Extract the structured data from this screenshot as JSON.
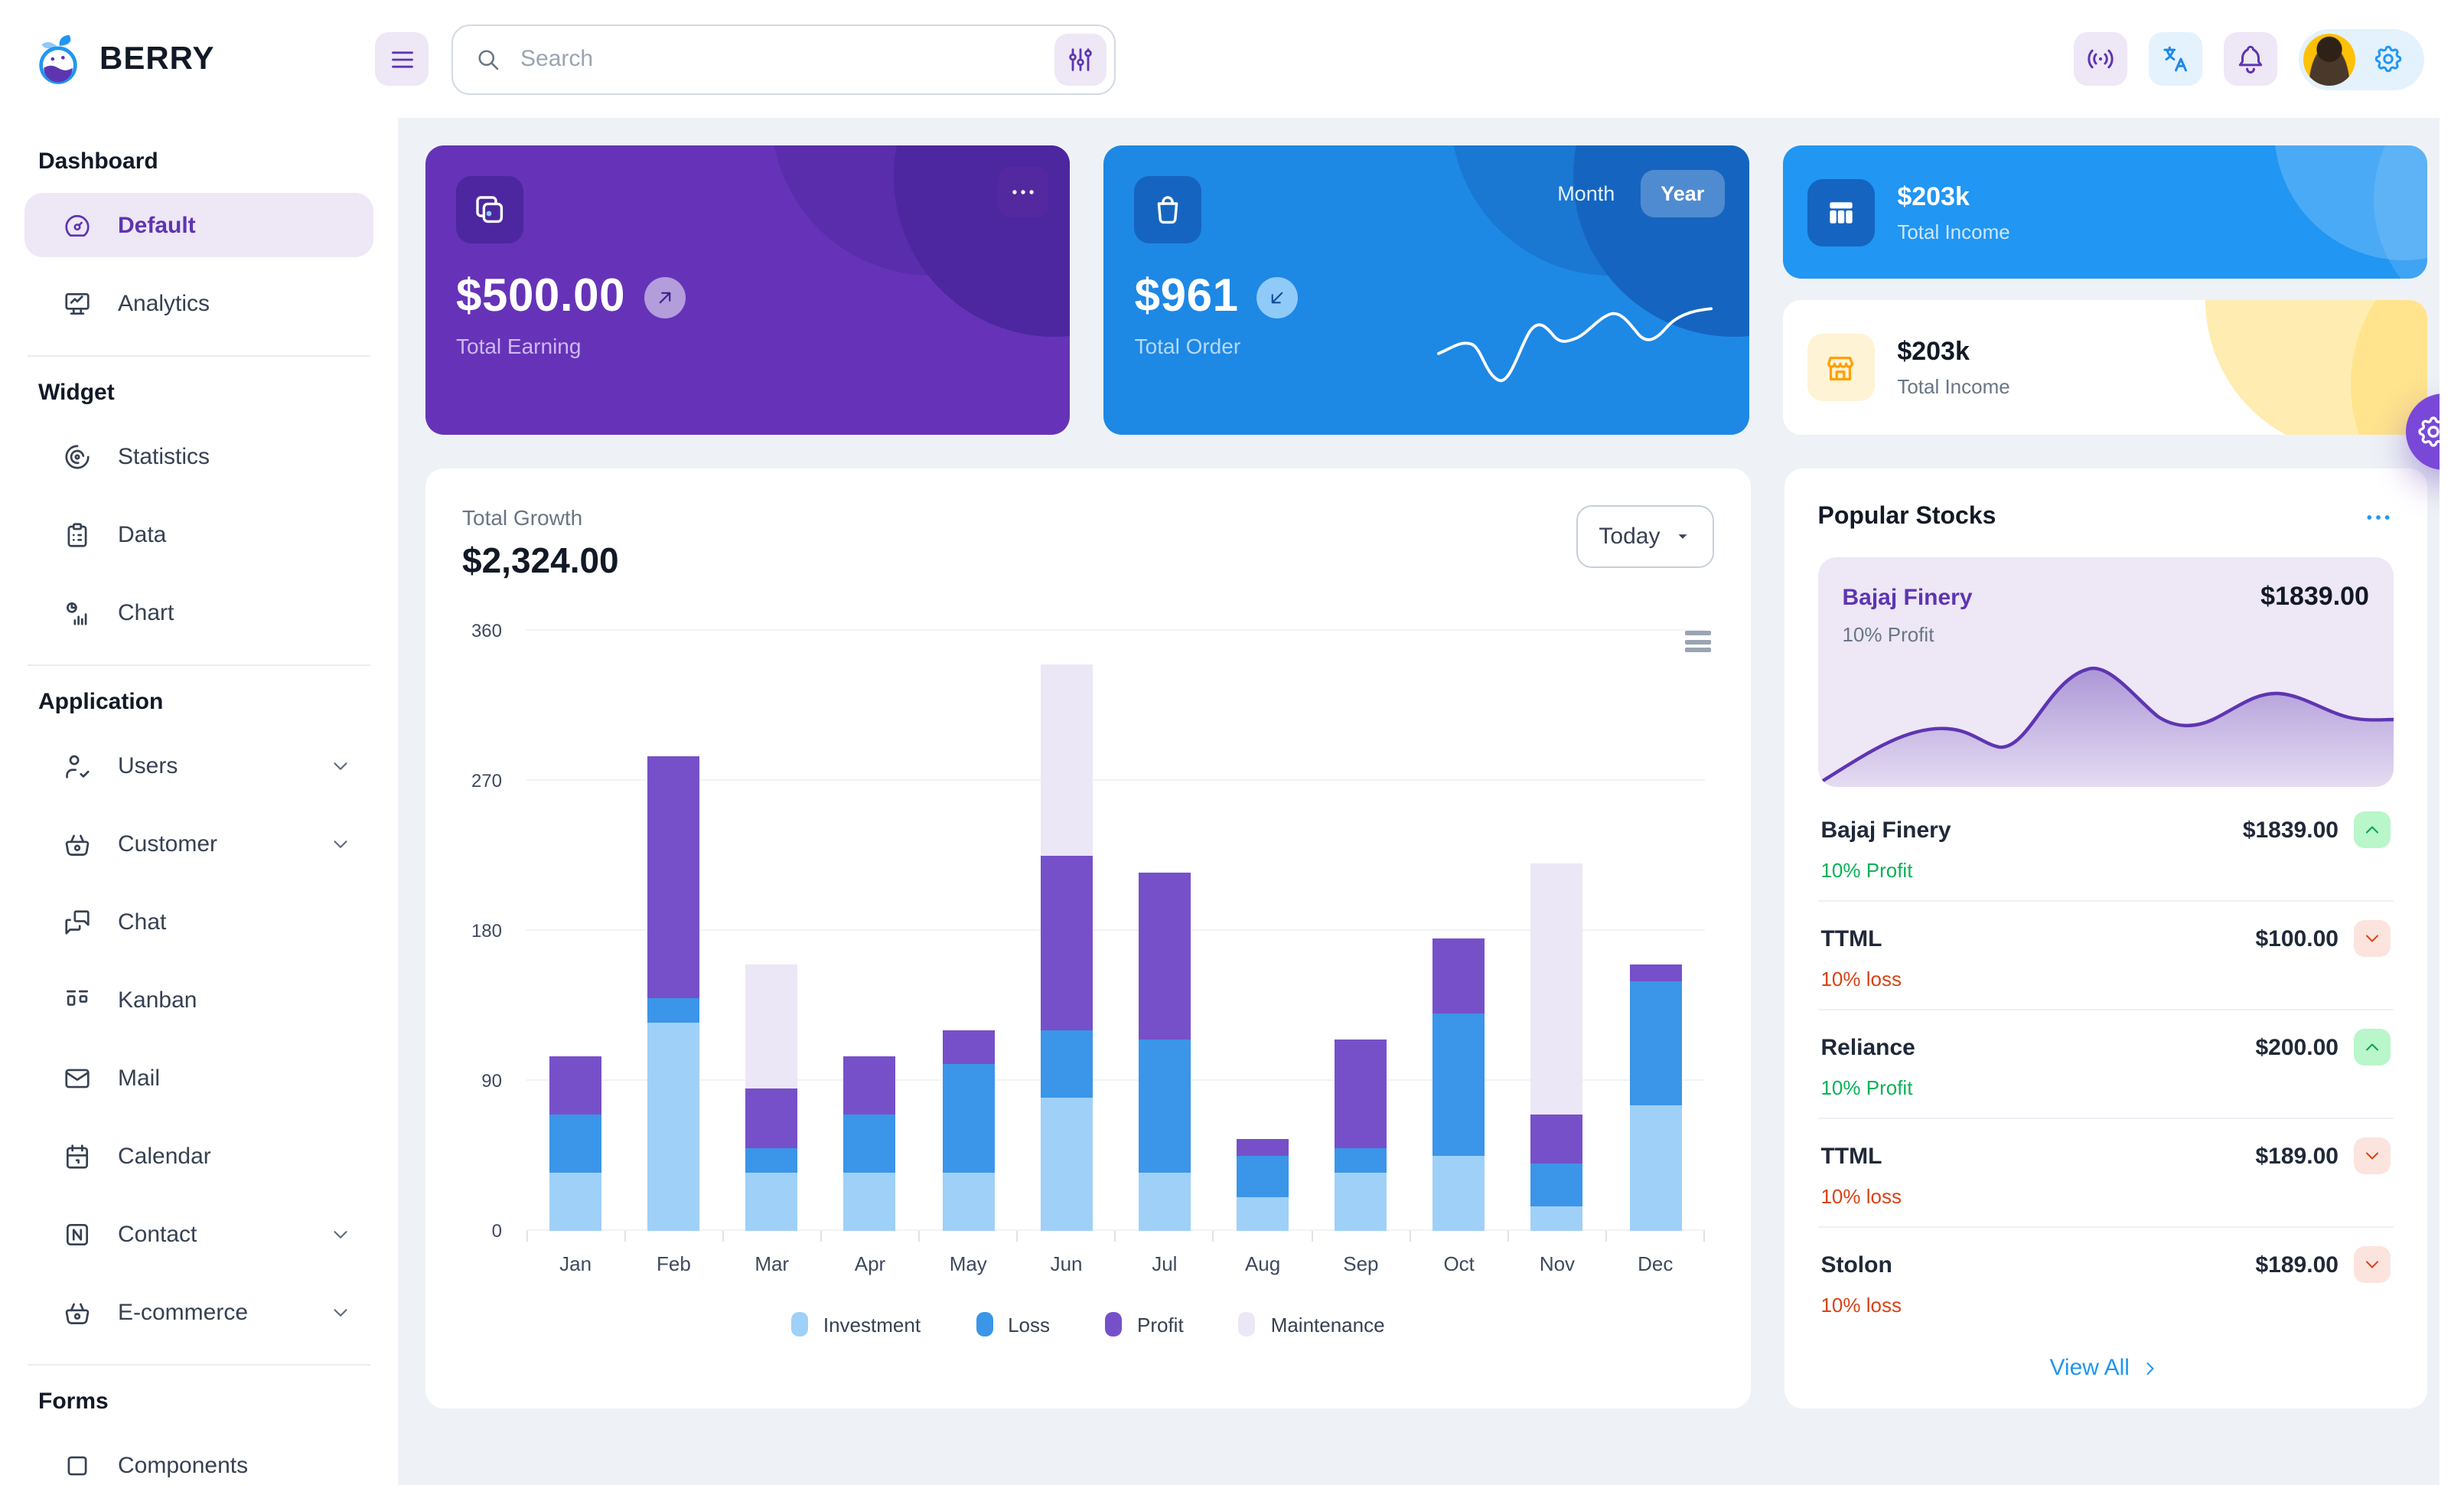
{
  "brand": {
    "name": "BERRY"
  },
  "header": {
    "search_placeholder": "Search",
    "icons": [
      "broadcast",
      "language",
      "bell"
    ],
    "profile": {
      "settings_icon": "settings"
    }
  },
  "sidebar": {
    "sections": [
      {
        "title": "Dashboard",
        "items": [
          {
            "label": "Default",
            "icon": "gauge",
            "active": true
          },
          {
            "label": "Analytics",
            "icon": "device-analytics"
          }
        ]
      },
      {
        "title": "Widget",
        "items": [
          {
            "label": "Statistics",
            "icon": "chart-arcs"
          },
          {
            "label": "Data",
            "icon": "clipboard-list"
          },
          {
            "label": "Chart",
            "icon": "chart-infographic"
          }
        ]
      },
      {
        "title": "Application",
        "items": [
          {
            "label": "Users",
            "icon": "user-check",
            "expandable": true
          },
          {
            "label": "Customer",
            "icon": "basket",
            "expandable": true
          },
          {
            "label": "Chat",
            "icon": "messages"
          },
          {
            "label": "Kanban",
            "icon": "layout-kanban"
          },
          {
            "label": "Mail",
            "icon": "mail"
          },
          {
            "label": "Calendar",
            "icon": "calendar"
          },
          {
            "label": "Contact",
            "icon": "nfc",
            "expandable": true
          },
          {
            "label": "E-commerce",
            "icon": "basket",
            "expandable": true
          }
        ]
      },
      {
        "title": "Forms",
        "items": [
          {
            "label": "Components",
            "icon": "components",
            "partial": true
          }
        ]
      }
    ]
  },
  "cards": {
    "earning": {
      "value": "$500.00",
      "label": "Total Earning",
      "badge_icon": "arrow-up-right",
      "menu_icon": "dots"
    },
    "order": {
      "value": "$961",
      "label": "Total Order",
      "badge_icon": "arrow-down-left",
      "toggle": {
        "options": [
          "Month",
          "Year"
        ],
        "selected": "Year"
      },
      "sparkline_approx": [
        40,
        48,
        30,
        5,
        45,
        65,
        58,
        55,
        75,
        80,
        62,
        88,
        92
      ]
    },
    "income_dark": {
      "value": "$203k",
      "label": "Total Income",
      "icon": "table"
    },
    "income_light": {
      "value": "$203k",
      "label": "Total Income",
      "icon": "store"
    }
  },
  "growth": {
    "title": "Total Growth",
    "amount": "$2,324.00",
    "range_button": "Today",
    "chart_data": {
      "type": "bar",
      "stacked": true,
      "title": "Total Growth",
      "categories": [
        "Jan",
        "Feb",
        "Mar",
        "Apr",
        "May",
        "Jun",
        "Jul",
        "Aug",
        "Sep",
        "Oct",
        "Nov",
        "Dec"
      ],
      "series": [
        {
          "name": "Investment",
          "color": "#9fd0f8",
          "values": [
            35,
            125,
            35,
            35,
            35,
            80,
            35,
            20,
            35,
            45,
            15,
            75
          ]
        },
        {
          "name": "Loss",
          "color": "#3b95e9",
          "values": [
            35,
            15,
            15,
            35,
            65,
            40,
            80,
            25,
            15,
            85,
            25,
            75
          ]
        },
        {
          "name": "Profit",
          "color": "#7650c9",
          "values": [
            35,
            145,
            35,
            35,
            20,
            105,
            100,
            10,
            65,
            45,
            30,
            10
          ]
        },
        {
          "name": "Maintenance",
          "color": "#ece7f6",
          "values": [
            0,
            0,
            75,
            0,
            0,
            115,
            0,
            0,
            0,
            0,
            150,
            0
          ]
        }
      ],
      "ylim": [
        0,
        360
      ],
      "yticks": [
        0,
        90,
        180,
        270,
        360
      ],
      "grid": true,
      "legend_position": "bottom"
    }
  },
  "stocks": {
    "title": "Popular Stocks",
    "featured": {
      "name": "Bajaj Finery",
      "price": "$1839.00",
      "change": "10% Profit",
      "sparkline_approx": [
        2,
        25,
        42,
        38,
        32,
        30,
        88,
        92,
        60,
        45,
        52,
        70,
        64,
        45,
        38,
        40
      ]
    },
    "items": [
      {
        "name": "Bajaj Finery",
        "change": "10% Profit",
        "price": "$1839.00",
        "direction": "up"
      },
      {
        "name": "TTML",
        "change": "10% loss",
        "price": "$100.00",
        "direction": "down"
      },
      {
        "name": "Reliance",
        "change": "10% Profit",
        "price": "$200.00",
        "direction": "up"
      },
      {
        "name": "TTML",
        "change": "10% loss",
        "price": "$189.00",
        "direction": "down"
      },
      {
        "name": "Stolon",
        "change": "10% loss",
        "price": "$189.00",
        "direction": "down"
      }
    ],
    "view_all": "View All"
  },
  "colors": {
    "page_bg": "#eef2f6",
    "purple_dark": "#5e35b1",
    "purple_card": "#6633b8",
    "purple_light": "#ede7f6",
    "blue": "#2196f3",
    "blue_dark": "#1e88e5",
    "blue_800": "#1565c0",
    "blue_light": "#e3f2fd",
    "success": "#09b256",
    "success_light": "#b9f6ca",
    "error": "#d84315",
    "error_light": "#fbe4dd",
    "warning": "#ffc107",
    "warning_light": "#fff3d6"
  }
}
